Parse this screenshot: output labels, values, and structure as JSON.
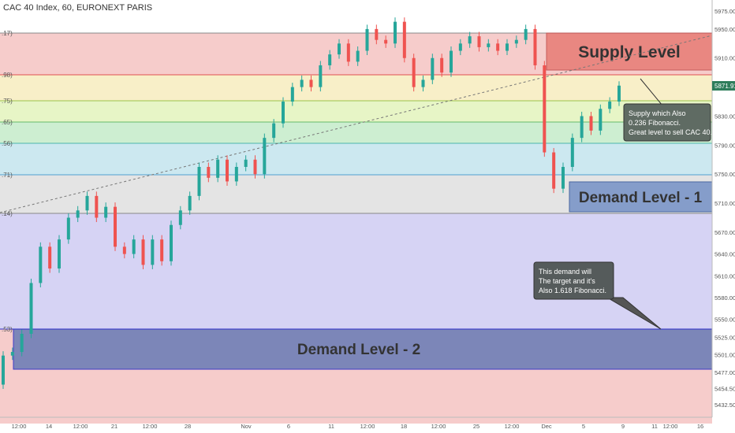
{
  "header": {
    "title": "CAC 40 Index, 60, EURONEXT PARIS"
  },
  "chart_data": {
    "type": "candlestick",
    "title": "CAC 40 Index, 60, EURONEXT PARIS",
    "ylim": [
      5415,
      5990
    ],
    "y_ticks": [
      5975,
      5950,
      5910,
      5870,
      5830,
      5790,
      5750,
      5710,
      5670,
      5640,
      5610,
      5580,
      5550,
      5525,
      5501,
      5477,
      5454.5,
      5432.5
    ],
    "y_tick_labels": [
      "5975.00",
      "5950.00",
      "5910.00",
      "5870.00",
      "5830.00",
      "5790.00",
      "5750.00",
      "5710.00",
      "5670.00",
      "5640.00",
      "5610.00",
      "5580.00",
      "5550.00",
      "5525.00",
      "5501.00",
      "5477.00",
      "5454.50",
      "5432.50"
    ],
    "x_tick_labels": [
      "12:00",
      "14",
      "12:00",
      "21",
      "12:00",
      "28",
      "Nov",
      "6",
      "11",
      "12:00",
      "18",
      "12:00",
      "25",
      "12:00",
      "Dec",
      "5",
      "9",
      "11",
      "12:00",
      "16"
    ],
    "last_price": {
      "value": 5871.91,
      "label": "5871.91"
    },
    "fib_left_labels": [
      ".17)",
      ".98)",
      ".75)",
      ".65)",
      ".56)",
      ".71)",
      ".14)",
      ".53)"
    ],
    "fib_levels": [
      5950,
      5895,
      5855,
      5825,
      5795,
      5755,
      5700,
      5537
    ],
    "zones": [
      {
        "name": "Supply Level",
        "low": 5895,
        "high": 5950,
        "color": "#e8807a"
      },
      {
        "name": "Demand Level - 1",
        "low": 5700,
        "high": 5743,
        "color": "#7b96c8"
      },
      {
        "name": "Demand Level - 2",
        "low": 5483,
        "high": 5537,
        "color": "#6f7fb6"
      }
    ],
    "notes": [
      {
        "lines": [
          "Supply which Also",
          "0.236 Fibonacci.",
          "Great level to sell CAC 40."
        ]
      },
      {
        "lines": [
          "This demand will",
          "The target and it's",
          "Also 1.618 Fibonacci."
        ]
      }
    ],
    "series_points": [
      [
        5460,
        5500
      ],
      [
        5500,
        5505
      ],
      [
        5505,
        5530
      ],
      [
        5530,
        5600
      ],
      [
        5600,
        5650
      ],
      [
        5650,
        5620
      ],
      [
        5620,
        5660
      ],
      [
        5660,
        5690
      ],
      [
        5690,
        5700
      ],
      [
        5700,
        5720
      ],
      [
        5720,
        5690
      ],
      [
        5690,
        5705
      ],
      [
        5705,
        5650
      ],
      [
        5650,
        5640
      ],
      [
        5640,
        5660
      ],
      [
        5660,
        5625
      ],
      [
        5625,
        5660
      ],
      [
        5660,
        5630
      ],
      [
        5630,
        5680
      ],
      [
        5680,
        5700
      ],
      [
        5700,
        5720
      ],
      [
        5720,
        5760
      ],
      [
        5760,
        5745
      ],
      [
        5745,
        5770
      ],
      [
        5770,
        5740
      ],
      [
        5740,
        5760
      ],
      [
        5760,
        5770
      ],
      [
        5770,
        5750
      ],
      [
        5750,
        5800
      ],
      [
        5800,
        5820
      ],
      [
        5820,
        5850
      ],
      [
        5850,
        5870
      ],
      [
        5870,
        5880
      ],
      [
        5880,
        5870
      ],
      [
        5870,
        5900
      ],
      [
        5900,
        5915
      ],
      [
        5915,
        5930
      ],
      [
        5930,
        5905
      ],
      [
        5905,
        5920
      ],
      [
        5920,
        5950
      ],
      [
        5950,
        5935
      ],
      [
        5935,
        5930
      ],
      [
        5930,
        5960
      ],
      [
        5960,
        5910
      ],
      [
        5910,
        5870
      ],
      [
        5870,
        5880
      ],
      [
        5880,
        5910
      ],
      [
        5910,
        5890
      ],
      [
        5890,
        5920
      ],
      [
        5920,
        5930
      ],
      [
        5930,
        5940
      ],
      [
        5940,
        5925
      ],
      [
        5925,
        5930
      ],
      [
        5930,
        5920
      ],
      [
        5920,
        5930
      ],
      [
        5930,
        5935
      ],
      [
        5935,
        5950
      ],
      [
        5950,
        5900
      ],
      [
        5900,
        5780
      ],
      [
        5780,
        5730
      ],
      [
        5730,
        5760
      ],
      [
        5760,
        5800
      ],
      [
        5800,
        5830
      ],
      [
        5830,
        5810
      ],
      [
        5810,
        5840
      ],
      [
        5840,
        5850
      ],
      [
        5850,
        5872
      ]
    ],
    "x_axis_right_label": "12:00"
  },
  "colors": {
    "up": "#26a69a",
    "down": "#ef5350",
    "price_badge": "#2e7d5b"
  }
}
